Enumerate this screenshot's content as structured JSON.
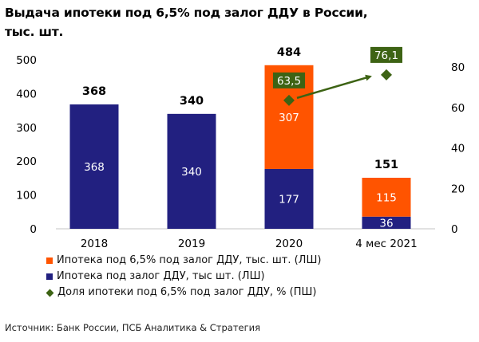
{
  "title": "Выдача ипотеки под 6,5% под залог ДДУ в России, тыс. шт.",
  "source": "Источник: Банк России, ПСБ Аналитика & Стратегия",
  "colors": {
    "subsidized": "#ff5400",
    "total_ddu": "#222080",
    "share": "#3d6314",
    "share_label_bg": "#3d6314",
    "axis_line": "#d9d9d9"
  },
  "legend": [
    {
      "name": "Ипотека под 6,5% под залог ДДУ, тыс. шт. (ЛШ)",
      "icon": "orange-square"
    },
    {
      "name": "Ипотека под залог ДДУ, тыс шт. (ЛШ)",
      "icon": "navy-square"
    },
    {
      "name": "Доля ипотеки под 6,5% под залог ДДУ, % (ПШ)",
      "icon": "green-diamond"
    }
  ],
  "chart_data": {
    "type": "bar",
    "stacked": true,
    "title": "Выдача ипотеки под 6,5% под залог ДДУ в России, тыс. шт.",
    "categories": [
      "2018",
      "2019",
      "2020",
      "4 мес 2021"
    ],
    "series": [
      {
        "name": "Ипотека под залог ДДУ, тыс шт. (ЛШ)",
        "axis": "left",
        "values": [
          368,
          340,
          177,
          36
        ],
        "labels": [
          "368",
          "340",
          "177",
          "36"
        ]
      },
      {
        "name": "Ипотека под 6,5% под залог ДДУ, тыс. шт. (ЛШ)",
        "axis": "left",
        "values": [
          0,
          0,
          307,
          115
        ],
        "labels": [
          "",
          "",
          "307",
          "115"
        ]
      },
      {
        "name": "Доля ипотеки под 6,5% под залог ДДУ, % (ПШ)",
        "axis": "right",
        "type": "scatter",
        "values": [
          null,
          null,
          63.5,
          76.1
        ],
        "labels": [
          "",
          "",
          "63,5",
          "76,1"
        ]
      }
    ],
    "totals": [
      368,
      340,
      484,
      151
    ],
    "total_labels": [
      "368",
      "340",
      "484",
      "151"
    ],
    "left_axis": {
      "min": 0,
      "max": 500,
      "ticks": [
        "0",
        "100",
        "200",
        "300",
        "400",
        "500"
      ]
    },
    "right_axis": {
      "min": 0,
      "max": 80,
      "ticks": [
        "0",
        "20",
        "40",
        "60",
        "80"
      ]
    },
    "annotation": "arrow from 2020 share point to 4 мес 2021 share point",
    "grid": false,
    "legend_position": "bottom-left",
    "xlabel": "",
    "ylabel": ""
  }
}
